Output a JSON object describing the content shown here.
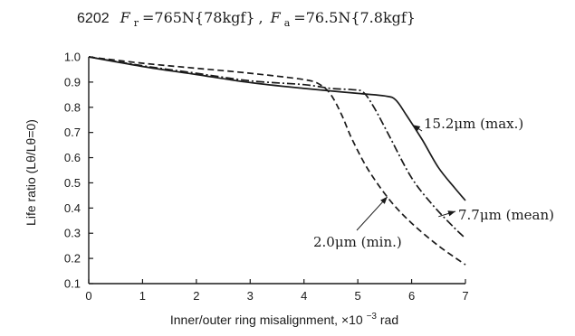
{
  "chart_data": {
    "type": "line",
    "title": {
      "prefix": "6202",
      "fr_symbol": "F",
      "fr_sub": "r",
      "fr_value": "=765N{78kgf}",
      "sep": ",",
      "fa_symbol": "F",
      "fa_sub": "a",
      "fa_value": "=76.5N{7.8kgf}"
    },
    "xlabel": {
      "text": "Inner/outer ring misalignment, ×10",
      "exponent": "−3",
      "unit": " rad"
    },
    "ylabel": "Life ratio (Lθ/Lθ=0)",
    "xlim": [
      0,
      7
    ],
    "ylim": [
      0.1,
      1.0
    ],
    "x_ticks": [
      "0",
      "1",
      "2",
      "3",
      "4",
      "5",
      "6",
      "7"
    ],
    "y_ticks": [
      "0.1",
      "0.2",
      "0.3",
      "0.4",
      "0.5",
      "0.6",
      "0.7",
      "0.8",
      "0.9",
      "1.0"
    ],
    "grid": false,
    "series": [
      {
        "name": "15.2μm (max.)",
        "style": "solid",
        "x": [
          0,
          1,
          2,
          3,
          4,
          5,
          5.5,
          5.7,
          5.9,
          6.2,
          6.5,
          6.8,
          7.0
        ],
        "y": [
          1.0,
          0.962,
          0.93,
          0.898,
          0.875,
          0.855,
          0.845,
          0.83,
          0.77,
          0.67,
          0.56,
          0.48,
          0.43
        ]
      },
      {
        "name": "7.7μm (mean)",
        "style": "dashdot",
        "x": [
          0,
          1,
          2,
          3,
          4,
          4.5,
          4.9,
          5.1,
          5.3,
          5.6,
          6.0,
          6.4,
          6.8,
          7.0
        ],
        "y": [
          1.0,
          0.965,
          0.935,
          0.905,
          0.89,
          0.875,
          0.87,
          0.86,
          0.8,
          0.68,
          0.52,
          0.41,
          0.32,
          0.28
        ]
      },
      {
        "name": "2.0μm (min.)",
        "style": "dashed",
        "x": [
          0,
          1,
          2,
          3,
          4,
          4.3,
          4.5,
          4.7,
          4.9,
          5.2,
          5.6,
          6.0,
          6.5,
          7.0
        ],
        "y": [
          1.0,
          0.975,
          0.955,
          0.935,
          0.91,
          0.89,
          0.85,
          0.77,
          0.67,
          0.55,
          0.43,
          0.34,
          0.25,
          0.175
        ]
      }
    ],
    "annotations": [
      {
        "series": 0,
        "text": "15.2μm (max.)"
      },
      {
        "series": 1,
        "text": "7.7μm (mean)"
      },
      {
        "series": 2,
        "text": "2.0μm (min.)"
      }
    ]
  }
}
